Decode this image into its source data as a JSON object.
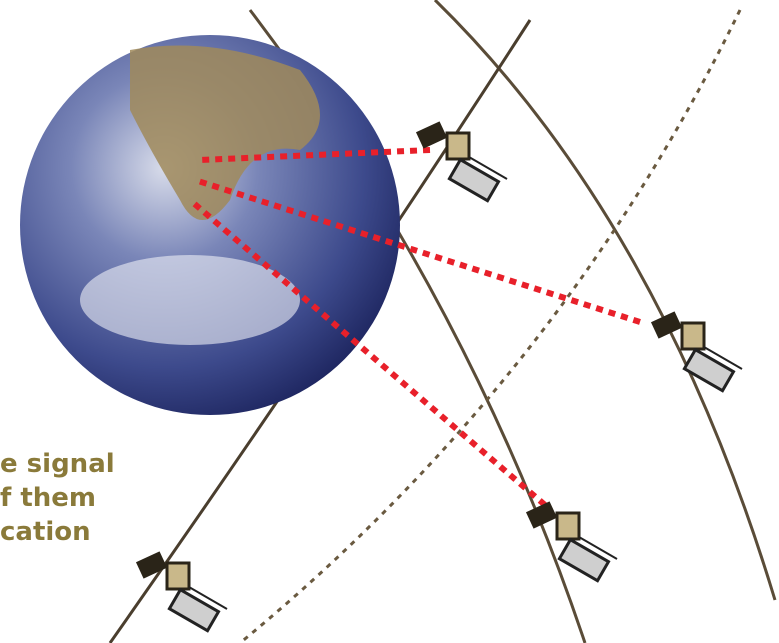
{
  "text_lines": [
    "e signal",
    "f them",
    "cation"
  ]
}
